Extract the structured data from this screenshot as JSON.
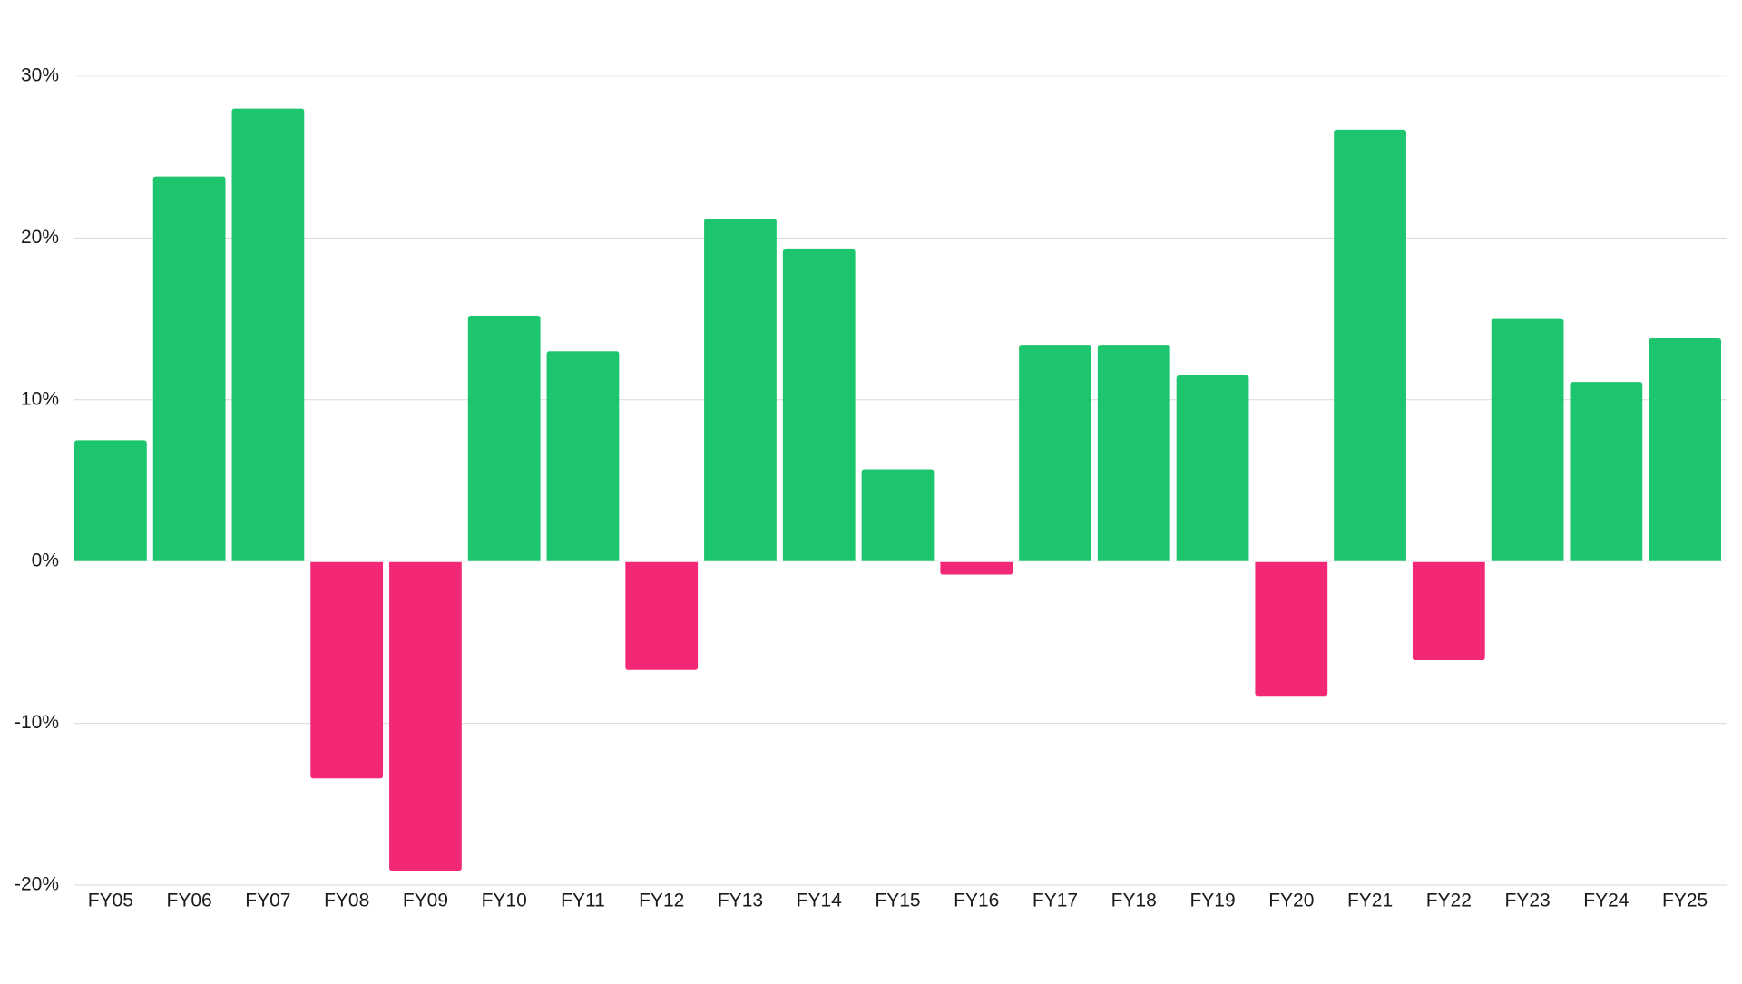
{
  "chart_data": {
    "type": "bar",
    "title": "",
    "xlabel": "",
    "ylabel": "",
    "categories": [
      "FY05",
      "FY06",
      "FY07",
      "FY08",
      "FY09",
      "FY10",
      "FY11",
      "FY12",
      "FY13",
      "FY14",
      "FY15",
      "FY16",
      "FY17",
      "FY18",
      "FY19",
      "FY20",
      "FY21",
      "FY22",
      "FY23",
      "FY24",
      "FY25"
    ],
    "values": [
      7.5,
      23.8,
      28.0,
      -13.4,
      -19.1,
      15.2,
      13.0,
      -6.7,
      21.2,
      19.3,
      5.7,
      -0.8,
      13.4,
      13.4,
      11.5,
      -8.3,
      26.7,
      -6.1,
      15.0,
      11.1,
      13.8
    ],
    "ylim": [
      -20,
      30
    ],
    "yticks": [
      -20,
      -10,
      0,
      10,
      20,
      30
    ],
    "ytick_labels": [
      "-20%",
      "-10%",
      "0%",
      "10%",
      "20%",
      "30%"
    ],
    "grid": true,
    "legend": "none",
    "colors": {
      "positive": "#1dc66e",
      "negative": "#f22876",
      "grid": "#d9d9d9",
      "text": "#1a1a1a"
    }
  }
}
